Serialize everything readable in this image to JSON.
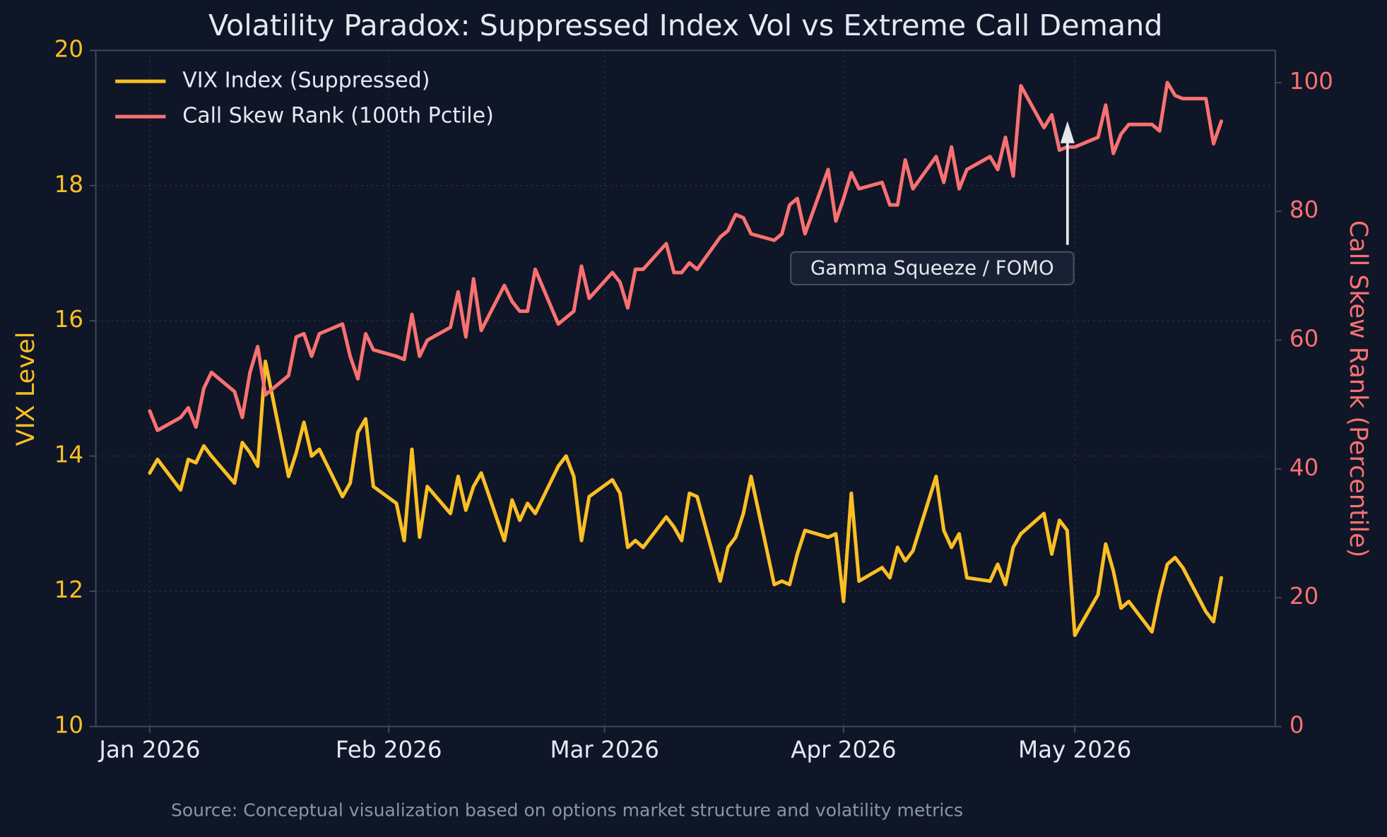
{
  "chart_data": {
    "type": "line",
    "title": "Volatility Paradox: Suppressed Index Vol vs Extreme Call Demand",
    "y_label": "VIX Level",
    "y2_label": "Call Skew Rank (Percentile)",
    "source": "Source: Conceptual visualization based on options market structure and volatility metrics",
    "annotation": "Gamma Squeeze / FOMO",
    "x": [
      "2026-01-01",
      "2026-01-02",
      "2026-01-05",
      "2026-01-06",
      "2026-01-07",
      "2026-01-08",
      "2026-01-09",
      "2026-01-12",
      "2026-01-13",
      "2026-01-14",
      "2026-01-15",
      "2026-01-16",
      "2026-01-19",
      "2026-01-20",
      "2026-01-21",
      "2026-01-22",
      "2026-01-23",
      "2026-01-26",
      "2026-01-27",
      "2026-01-28",
      "2026-01-29",
      "2026-01-30",
      "2026-02-02",
      "2026-02-03",
      "2026-02-04",
      "2026-02-05",
      "2026-02-06",
      "2026-02-09",
      "2026-02-10",
      "2026-02-11",
      "2026-02-12",
      "2026-02-13",
      "2026-02-16",
      "2026-02-17",
      "2026-02-18",
      "2026-02-19",
      "2026-02-20",
      "2026-02-23",
      "2026-02-24",
      "2026-02-25",
      "2026-02-26",
      "2026-02-27",
      "2026-03-02",
      "2026-03-03",
      "2026-03-04",
      "2026-03-05",
      "2026-03-06",
      "2026-03-09",
      "2026-03-10",
      "2026-03-11",
      "2026-03-12",
      "2026-03-13",
      "2026-03-16",
      "2026-03-17",
      "2026-03-18",
      "2026-03-19",
      "2026-03-20",
      "2026-03-23",
      "2026-03-24",
      "2026-03-25",
      "2026-03-26",
      "2026-03-27",
      "2026-03-30",
      "2026-03-31",
      "2026-04-01",
      "2026-04-02",
      "2026-04-03",
      "2026-04-06",
      "2026-04-07",
      "2026-04-08",
      "2026-04-09",
      "2026-04-10",
      "2026-04-13",
      "2026-04-14",
      "2026-04-15",
      "2026-04-16",
      "2026-04-17",
      "2026-04-20",
      "2026-04-21",
      "2026-04-22",
      "2026-04-23",
      "2026-04-24",
      "2026-04-27",
      "2026-04-28",
      "2026-04-29",
      "2026-04-30",
      "2026-05-01",
      "2026-05-04",
      "2026-05-05",
      "2026-05-06",
      "2026-05-07",
      "2026-05-08",
      "2026-05-11",
      "2026-05-12",
      "2026-05-13",
      "2026-05-14",
      "2026-05-15",
      "2026-05-18",
      "2026-05-19",
      "2026-05-20"
    ],
    "series": [
      {
        "name": "VIX Index (Suppressed)",
        "color": "#fbbf24",
        "axis": "y",
        "values": [
          13.75,
          13.95,
          13.5,
          13.95,
          13.9,
          14.15,
          14.0,
          13.6,
          14.2,
          14.05,
          13.85,
          15.4,
          13.7,
          14.05,
          14.5,
          14.0,
          14.1,
          13.4,
          13.6,
          14.35,
          14.55,
          13.55,
          13.3,
          12.75,
          14.1,
          12.8,
          13.55,
          13.15,
          13.7,
          13.2,
          13.55,
          13.75,
          12.75,
          13.35,
          13.05,
          13.3,
          13.15,
          13.85,
          14.0,
          13.7,
          12.75,
          13.4,
          13.65,
          13.45,
          12.65,
          12.75,
          12.65,
          13.1,
          12.95,
          12.75,
          13.45,
          13.4,
          12.15,
          12.65,
          12.8,
          13.15,
          13.7,
          12.1,
          12.15,
          12.1,
          12.55,
          12.9,
          12.8,
          12.85,
          11.85,
          13.45,
          12.15,
          12.35,
          12.2,
          12.65,
          12.45,
          12.6,
          13.7,
          12.9,
          12.65,
          12.85,
          12.2,
          12.15,
          12.4,
          12.1,
          12.65,
          12.85,
          13.15,
          12.55,
          13.05,
          12.9,
          11.35,
          11.95,
          12.7,
          12.3,
          11.75,
          11.85,
          11.4,
          11.95,
          12.4,
          12.5,
          12.35,
          11.7,
          11.55,
          12.2
        ]
      },
      {
        "name": "Call Skew Rank (100th Pctile)",
        "color": "#f87171",
        "axis": "y2",
        "values": [
          49,
          46,
          48,
          49.5,
          46.5,
          52.5,
          55,
          52,
          48,
          55,
          59,
          51.5,
          54.5,
          60.5,
          61,
          57.5,
          61,
          62.5,
          57.5,
          54,
          61,
          58.5,
          57.5,
          57,
          64,
          57.5,
          60,
          62,
          67.5,
          60.5,
          69.5,
          61.5,
          68.5,
          66,
          64.5,
          64.5,
          71,
          62.5,
          63.5,
          64.5,
          71.5,
          66.5,
          70.5,
          69,
          65,
          71,
          71,
          75,
          70.5,
          70.5,
          72,
          71,
          76,
          77,
          79.5,
          79,
          76.5,
          75.5,
          76.5,
          81,
          82,
          76.5,
          86.5,
          78.5,
          82,
          86,
          83.5,
          84.5,
          81,
          81,
          88,
          83.5,
          88.5,
          84.5,
          90,
          83.5,
          86.5,
          88.5,
          86.5,
          91.5,
          85.5,
          99.5,
          93,
          95,
          89.5,
          90,
          90,
          91.5,
          96.5,
          89,
          92,
          93.5,
          93.5,
          92.5,
          100,
          98,
          97.5,
          97.5,
          90.5,
          94
        ]
      }
    ],
    "xlim": [
      "2025-12-25",
      "2026-05-27"
    ],
    "xticks": [
      {
        "value": "2026-01-01",
        "label": "Jan 2026"
      },
      {
        "value": "2026-02-01",
        "label": "Feb 2026"
      },
      {
        "value": "2026-03-01",
        "label": "Mar 2026"
      },
      {
        "value": "2026-04-01",
        "label": "Apr 2026"
      },
      {
        "value": "2026-05-01",
        "label": "May 2026"
      }
    ],
    "ylim": [
      10,
      20
    ],
    "yticks": [
      10,
      12,
      14,
      16,
      18,
      20
    ],
    "y2lim": [
      0,
      105
    ],
    "y2ticks": [
      0,
      20,
      40,
      60,
      80,
      100
    ],
    "grid": true,
    "legend": "upper left"
  }
}
